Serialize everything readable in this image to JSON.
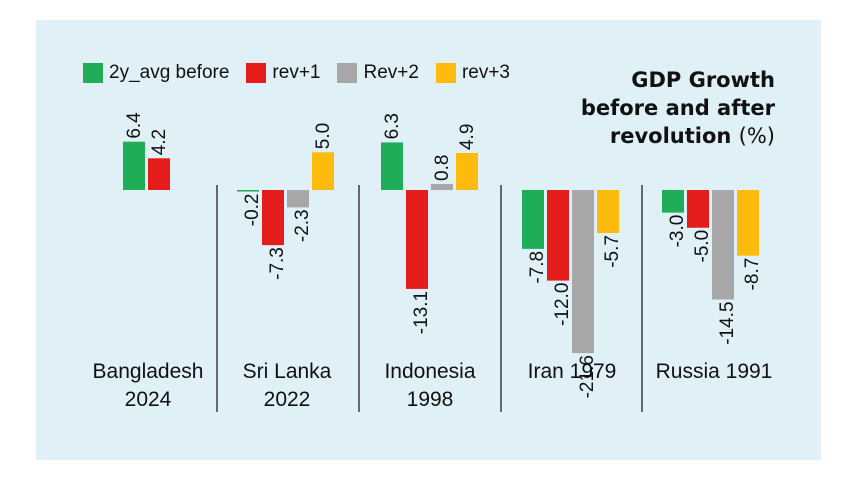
{
  "title": {
    "line1": "GDP Growth",
    "line2": "before and after",
    "line3": "revolution",
    "unit": "(%)"
  },
  "legend": [
    {
      "label": "2y_avg before",
      "color": "#1fae57"
    },
    {
      "label": "rev+1",
      "color": "#e41c1c"
    },
    {
      "label": "Rev+2",
      "color": "#a7a7a7"
    },
    {
      "label": "rev+3",
      "color": "#fdbb0e"
    }
  ],
  "chart_data": {
    "type": "bar",
    "title": "GDP Growth before and after revolution (%)",
    "categories": [
      {
        "line1": "Bangladesh",
        "line2": "2024"
      },
      {
        "line1": "Sri Lanka",
        "line2": "2022"
      },
      {
        "line1": "Indonesia",
        "line2": "1998"
      },
      {
        "line1": "Iran 1979",
        "line2": ""
      },
      {
        "line1": "Russia 1991",
        "line2": ""
      }
    ],
    "series": [
      {
        "name": "2y_avg before",
        "color": "#1fae57",
        "values": [
          6.4,
          -0.2,
          6.3,
          -7.8,
          -3.0
        ],
        "labels": [
          "6.4",
          "-0.2",
          "6.3",
          "-7.8",
          "-3.0"
        ]
      },
      {
        "name": "rev+1",
        "color": "#e41c1c",
        "values": [
          4.2,
          -7.3,
          -13.1,
          -12.0,
          -5.0
        ],
        "labels": [
          "4.2",
          "-7.3",
          "-13.1",
          "-12.0",
          "-5.0"
        ]
      },
      {
        "name": "Rev+2",
        "color": "#a7a7a7",
        "values": [
          null,
          -2.3,
          0.8,
          -21.6,
          -14.5
        ],
        "labels": [
          null,
          "-2.3",
          "0.8",
          "-21.6",
          "-14.5"
        ]
      },
      {
        "name": "rev+3",
        "color": "#fdbb0e",
        "values": [
          null,
          5.0,
          4.9,
          -5.7,
          -8.7
        ],
        "labels": [
          null,
          "5.0",
          "4.9",
          "-5.7",
          "-8.7"
        ]
      }
    ],
    "ylabel": "",
    "xlabel": "",
    "legend_position": "top-left",
    "grid": false
  }
}
